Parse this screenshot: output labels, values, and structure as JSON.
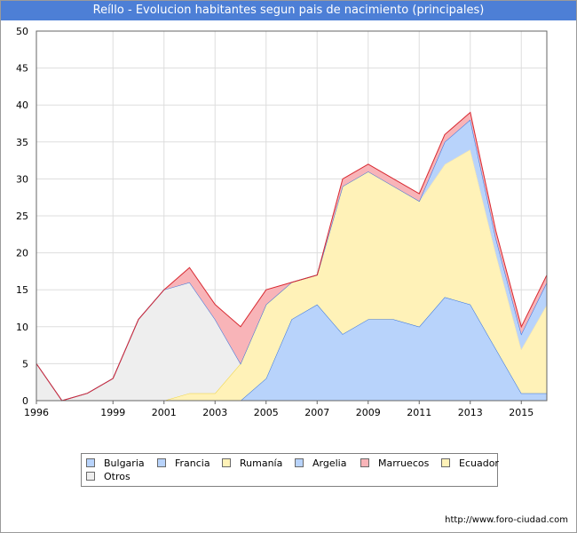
{
  "chart_data": {
    "type": "area",
    "title": "Reíllo - Evolucion habitantes segun pais de nacimiento (principales)",
    "stacked": true,
    "x": [
      1996,
      1997,
      1998,
      1999,
      2000,
      2001,
      2002,
      2003,
      2004,
      2005,
      2006,
      2007,
      2008,
      2009,
      2010,
      2011,
      2012,
      2013,
      2014,
      2015,
      2016
    ],
    "xticks": [
      1996,
      1999,
      2001,
      2003,
      2005,
      2007,
      2009,
      2011,
      2013,
      2015
    ],
    "ylim": [
      0,
      50
    ],
    "yticks": [
      0,
      5,
      10,
      15,
      20,
      25,
      30,
      35,
      40,
      45,
      50
    ],
    "grid": true,
    "legend_position": "bottom",
    "series": [
      {
        "name": "Bulgaria",
        "color": "#b8d3fb",
        "values": [
          0,
          0,
          0,
          0,
          0,
          0,
          0,
          0,
          0,
          0,
          0,
          0,
          0,
          0,
          0,
          0,
          0,
          0,
          0,
          0,
          0
        ]
      },
      {
        "name": "Francia",
        "color": "#b8d3fb",
        "values": [
          0,
          0,
          0,
          0,
          0,
          0,
          0,
          0,
          0,
          0,
          0,
          0,
          0,
          0,
          0,
          0,
          0,
          0,
          0,
          0,
          0
        ]
      },
      {
        "name": "Rumanía",
        "color": "#fff2b8",
        "values": [
          0,
          0,
          0,
          0,
          0,
          0,
          0,
          0,
          0,
          0,
          0,
          0,
          0,
          0,
          0,
          0,
          0,
          0,
          0,
          0,
          0
        ]
      },
      {
        "name": "Argelia",
        "color": "#b8d3fb",
        "values": [
          0,
          0,
          0,
          0,
          0,
          0,
          0,
          0,
          0,
          3,
          11,
          13,
          9,
          11,
          11,
          10,
          14,
          13,
          7,
          1,
          1
        ]
      },
      {
        "name": "Marruecos",
        "color": "#f8b4b8",
        "values": [
          0,
          0,
          0,
          0,
          0,
          0,
          0,
          0,
          0,
          0,
          0,
          0,
          0,
          0,
          0,
          0,
          0,
          0,
          0,
          0,
          0
        ]
      },
      {
        "name": "Ecuador",
        "color": "#fff2b8",
        "values": [
          0,
          0,
          0,
          0,
          0,
          0,
          1,
          1,
          5,
          10,
          5,
          4,
          20,
          20,
          18,
          17,
          18,
          21,
          13,
          6,
          12
        ]
      },
      {
        "name": "Otros",
        "color": "#eeeeee",
        "values": [
          5,
          0,
          1,
          3,
          11,
          15,
          15,
          10,
          0,
          0,
          0,
          0,
          0,
          0,
          0,
          0,
          0,
          0,
          0,
          0,
          0
        ]
      },
      {
        "name": "",
        "color": "#b8d3fb",
        "values": [
          0,
          0,
          0,
          0,
          0,
          0,
          0,
          0,
          0,
          0,
          0,
          0,
          0,
          0,
          0,
          0,
          3,
          4,
          2,
          2,
          3
        ]
      },
      {
        "name": "",
        "color": "#f8b4b8",
        "values": [
          0,
          0,
          0,
          0,
          0,
          0,
          2,
          2,
          5,
          2,
          0,
          0,
          1,
          1,
          1,
          1,
          1,
          1,
          1,
          1,
          1
        ]
      }
    ]
  },
  "legend": {
    "items": [
      {
        "label": "Bulgaria",
        "color": "#b8d3fb"
      },
      {
        "label": "Francia",
        "color": "#b8d3fb"
      },
      {
        "label": "Rumanía",
        "color": "#fff2b8"
      },
      {
        "label": "Argelia",
        "color": "#b8d3fb"
      },
      {
        "label": "Marruecos",
        "color": "#f8b4b8"
      },
      {
        "label": "Ecuador",
        "color": "#fff2b8"
      },
      {
        "label": "Otros",
        "color": "#eeeeee"
      }
    ]
  },
  "footer": {
    "url": "http://www.foro-ciudad.com"
  }
}
